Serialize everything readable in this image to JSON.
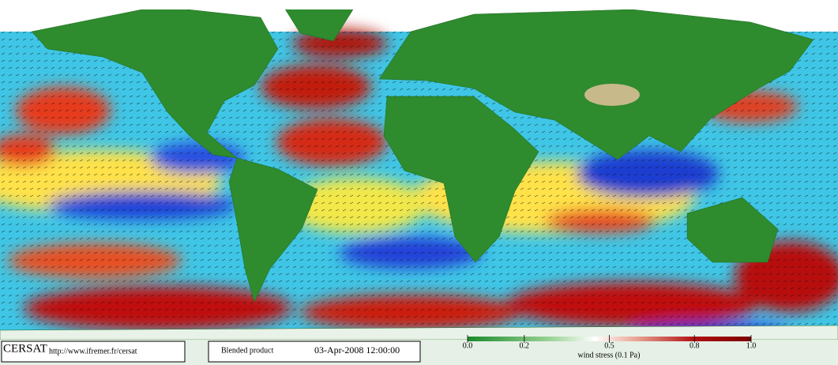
{
  "footer": {
    "logo": "CERSAT",
    "url": "http://www.ifremer.fr/cersat",
    "product": "Blended product",
    "datetime": "03-Apr-2008 12:00:00"
  },
  "colorbar": {
    "label": "wind stress (0.1 Pa)",
    "lim": [
      0,
      1
    ],
    "ticks": [
      {
        "value": 0,
        "label": "0.0"
      },
      0.2,
      0.5,
      0.8,
      {
        "value": 1,
        "label": "1.0"
      }
    ]
  }
}
